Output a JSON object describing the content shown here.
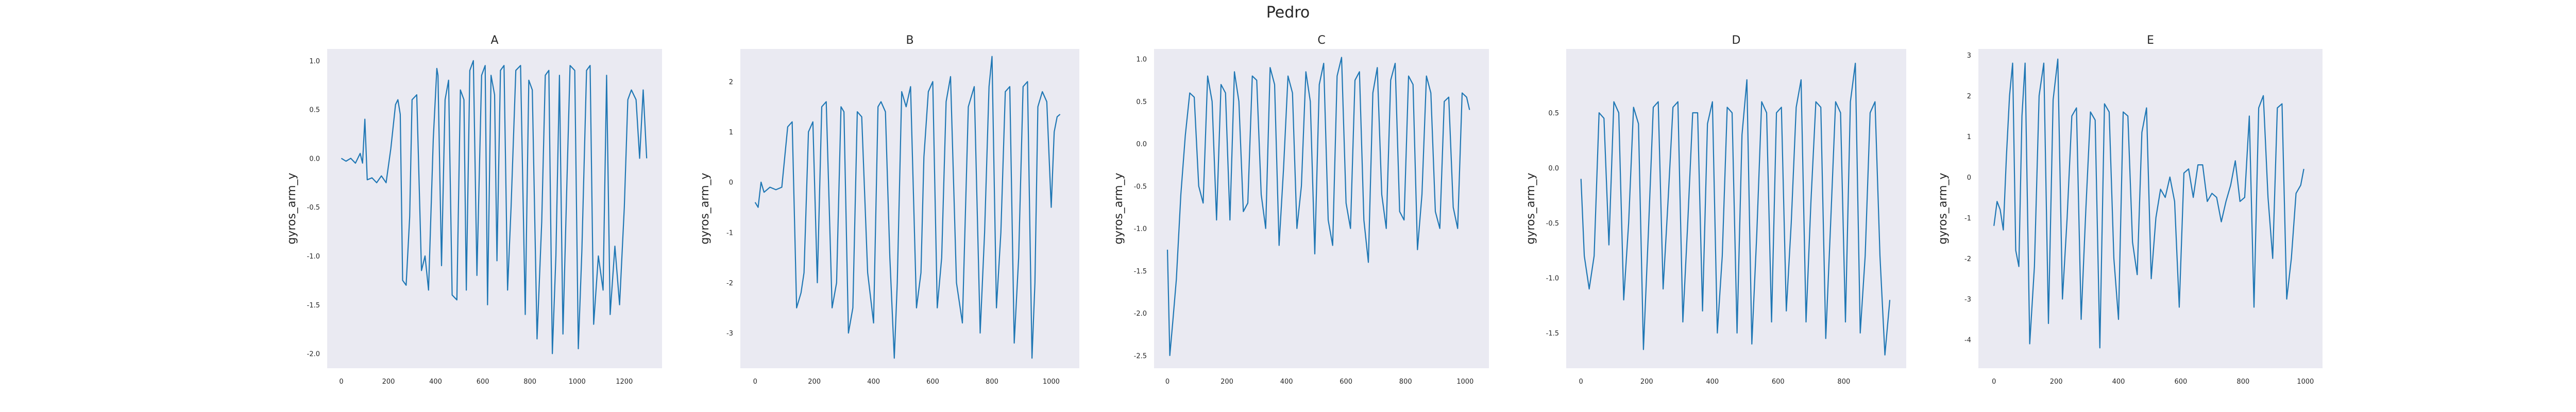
{
  "figure": {
    "title": "Pedro",
    "line_color": "#1f77b4",
    "background": "#eaeaf2"
  },
  "chart_data": [
    {
      "type": "line",
      "title": "A",
      "xlabel": "",
      "ylabel": "gyros_arm_y",
      "xlim": [
        -60,
        1360
      ],
      "ylim": [
        -2.15,
        1.12
      ],
      "xticks": [
        0,
        200,
        400,
        600,
        800,
        1000,
        1200
      ],
      "yticks": [
        -2.0,
        -1.5,
        -1.0,
        -0.5,
        0.0,
        0.5,
        1.0
      ],
      "ytick_labels": [
        "-2.0",
        "-1.5",
        "-1.0",
        "-0.5",
        "0.0",
        "0.5",
        "1.0"
      ],
      "grid": false,
      "x": [
        0,
        20,
        40,
        60,
        80,
        90,
        100,
        110,
        130,
        150,
        170,
        190,
        210,
        230,
        240,
        250,
        260,
        275,
        290,
        300,
        320,
        340,
        355,
        370,
        390,
        405,
        410,
        425,
        440,
        455,
        470,
        490,
        505,
        520,
        530,
        545,
        560,
        575,
        595,
        610,
        620,
        635,
        650,
        660,
        675,
        690,
        705,
        720,
        740,
        760,
        780,
        795,
        810,
        830,
        850,
        865,
        880,
        895,
        910,
        925,
        940,
        955,
        970,
        990,
        1005,
        1020,
        1040,
        1055,
        1070,
        1090,
        1110,
        1125,
        1140,
        1160,
        1180,
        1200,
        1215,
        1230,
        1250,
        1265,
        1280,
        1295
      ],
      "y": [
        0.0,
        -0.03,
        0.0,
        -0.05,
        0.05,
        -0.05,
        0.4,
        -0.22,
        -0.2,
        -0.25,
        -0.18,
        -0.25,
        0.1,
        0.55,
        0.6,
        0.45,
        -1.25,
        -1.3,
        -0.6,
        0.6,
        0.65,
        -1.15,
        -1.0,
        -1.35,
        0.2,
        0.92,
        0.85,
        -1.1,
        0.6,
        0.8,
        -1.4,
        -1.45,
        0.7,
        0.6,
        -1.35,
        0.9,
        1.0,
        -1.2,
        0.85,
        0.95,
        -1.5,
        0.85,
        0.65,
        -1.05,
        0.9,
        0.95,
        -1.35,
        -0.5,
        0.9,
        0.95,
        -1.6,
        0.8,
        0.7,
        -1.85,
        -0.65,
        0.85,
        0.9,
        -2.0,
        -1.0,
        0.85,
        -1.8,
        -0.4,
        0.95,
        0.9,
        -1.95,
        -0.95,
        0.9,
        0.95,
        -1.7,
        -1.0,
        -1.35,
        0.85,
        -1.6,
        -0.9,
        -1.5,
        -0.5,
        0.6,
        0.7,
        0.6,
        0.0,
        0.7,
        0.0
      ]
    },
    {
      "type": "line",
      "title": "B",
      "xlabel": "",
      "ylabel": "gyros_arm_y",
      "xlim": [
        -50,
        1095
      ],
      "ylim": [
        -3.7,
        2.65
      ],
      "xticks": [
        0,
        200,
        400,
        600,
        800,
        1000
      ],
      "yticks": [
        -3,
        -2,
        -1,
        0,
        1,
        2
      ],
      "ytick_labels": [
        "-3",
        "-2",
        "-1",
        "0",
        "1",
        "2"
      ],
      "grid": false,
      "x": [
        0,
        10,
        20,
        30,
        50,
        70,
        90,
        110,
        125,
        140,
        155,
        165,
        180,
        195,
        210,
        225,
        240,
        260,
        275,
        290,
        300,
        315,
        330,
        345,
        360,
        380,
        400,
        415,
        425,
        440,
        455,
        470,
        480,
        495,
        510,
        525,
        545,
        560,
        570,
        585,
        600,
        615,
        630,
        645,
        660,
        680,
        700,
        720,
        740,
        760,
        775,
        790,
        800,
        815,
        830,
        845,
        860,
        875,
        890,
        905,
        920,
        935,
        945,
        955,
        970,
        985,
        1000,
        1010,
        1020,
        1030
      ],
      "y": [
        -0.4,
        -0.5,
        0.0,
        -0.2,
        -0.1,
        -0.15,
        -0.1,
        1.1,
        1.2,
        -2.5,
        -2.2,
        -1.8,
        1.0,
        1.2,
        -2.0,
        1.5,
        1.6,
        -2.5,
        -2.0,
        1.5,
        1.4,
        -3.0,
        -2.5,
        1.4,
        1.3,
        -1.8,
        -2.8,
        1.5,
        1.6,
        1.4,
        -1.5,
        -3.5,
        -2.0,
        1.8,
        1.5,
        1.9,
        -2.5,
        -1.8,
        0.5,
        1.8,
        2.0,
        -2.5,
        -1.5,
        1.6,
        2.1,
        -2.0,
        -2.8,
        1.5,
        1.9,
        -3.0,
        -1.0,
        1.9,
        2.5,
        -2.5,
        -1.0,
        1.8,
        1.9,
        -3.2,
        -1.5,
        1.9,
        2.0,
        -3.5,
        -2.0,
        1.5,
        1.8,
        1.6,
        -0.5,
        1.0,
        1.3,
        1.35
      ]
    },
    {
      "type": "line",
      "title": "C",
      "xlabel": "",
      "ylabel": "gyros_arm_y",
      "xlim": [
        -45,
        1080
      ],
      "ylim": [
        -2.65,
        1.12
      ],
      "xticks": [
        0,
        200,
        400,
        600,
        800,
        1000
      ],
      "yticks": [
        -2.5,
        -2.0,
        -1.5,
        -1.0,
        -0.5,
        0.0,
        0.5,
        1.0
      ],
      "ytick_labels": [
        "-2.5",
        "-2.0",
        "-1.5",
        "-1.0",
        "-0.5",
        "0.0",
        "0.5",
        "1.0"
      ],
      "grid": false,
      "x": [
        0,
        8,
        18,
        30,
        45,
        60,
        75,
        90,
        105,
        120,
        135,
        150,
        165,
        180,
        195,
        210,
        225,
        240,
        255,
        270,
        285,
        300,
        315,
        330,
        345,
        360,
        375,
        390,
        405,
        420,
        435,
        450,
        465,
        480,
        495,
        510,
        525,
        540,
        555,
        570,
        585,
        600,
        615,
        630,
        645,
        660,
        675,
        690,
        705,
        720,
        735,
        750,
        765,
        780,
        795,
        810,
        825,
        840,
        855,
        870,
        885,
        900,
        915,
        930,
        945,
        960,
        975,
        990,
        1005,
        1015
      ],
      "y": [
        -1.25,
        -2.5,
        -2.1,
        -1.6,
        -0.6,
        0.1,
        0.6,
        0.55,
        -0.5,
        -0.7,
        0.8,
        0.5,
        -0.9,
        0.7,
        0.6,
        -0.9,
        0.85,
        0.5,
        -0.8,
        -0.7,
        0.8,
        0.75,
        -0.6,
        -1.0,
        0.9,
        0.7,
        -1.2,
        -0.3,
        0.8,
        0.6,
        -1.0,
        -0.5,
        0.85,
        0.5,
        -1.3,
        0.7,
        0.95,
        -0.9,
        -1.2,
        0.8,
        1.02,
        -0.7,
        -1.0,
        0.75,
        0.85,
        -0.9,
        -1.4,
        0.6,
        0.9,
        -0.6,
        -1.0,
        0.75,
        0.95,
        -0.8,
        -0.9,
        0.8,
        0.7,
        -1.25,
        -0.6,
        0.8,
        0.6,
        -0.8,
        -1.0,
        0.5,
        0.55,
        -0.75,
        -1.0,
        0.6,
        0.55,
        0.4
      ]
    },
    {
      "type": "line",
      "title": "D",
      "xlabel": "",
      "ylabel": "gyros_arm_y",
      "xlim": [
        -45,
        990
      ],
      "ylim": [
        -1.82,
        1.08
      ],
      "xticks": [
        0,
        200,
        400,
        600,
        800
      ],
      "yticks": [
        -1.5,
        -1.0,
        -0.5,
        0.0,
        0.5
      ],
      "ytick_labels": [
        "-1.5",
        "-1.0",
        "-0.5",
        "0.0",
        "0.5"
      ],
      "grid": false,
      "x": [
        0,
        10,
        25,
        40,
        55,
        70,
        85,
        100,
        115,
        130,
        145,
        160,
        175,
        190,
        205,
        220,
        235,
        250,
        265,
        280,
        295,
        310,
        325,
        340,
        355,
        370,
        385,
        400,
        415,
        430,
        445,
        460,
        475,
        490,
        505,
        520,
        535,
        550,
        565,
        580,
        595,
        610,
        625,
        640,
        655,
        670,
        685,
        700,
        715,
        730,
        745,
        760,
        775,
        790,
        805,
        820,
        835,
        850,
        865,
        880,
        895,
        910,
        925,
        940
      ],
      "y": [
        -0.1,
        -0.8,
        -1.1,
        -0.8,
        0.5,
        0.45,
        -0.7,
        0.6,
        0.5,
        -1.2,
        -0.5,
        0.55,
        0.4,
        -1.65,
        -0.6,
        0.55,
        0.6,
        -1.1,
        -0.3,
        0.55,
        0.6,
        -1.4,
        -0.5,
        0.5,
        0.5,
        -1.3,
        0.4,
        0.6,
        -1.5,
        -0.8,
        0.55,
        0.5,
        -1.5,
        0.3,
        0.8,
        -1.6,
        -0.6,
        0.6,
        0.5,
        -1.4,
        0.5,
        0.55,
        -1.3,
        -0.5,
        0.55,
        0.8,
        -1.4,
        -0.3,
        0.6,
        0.55,
        -1.55,
        -0.5,
        0.6,
        0.5,
        -1.4,
        0.6,
        0.95,
        -1.5,
        -0.8,
        0.5,
        0.6,
        -0.8,
        -1.7,
        -1.2
      ]
    },
    {
      "type": "line",
      "title": "E",
      "xlabel": "",
      "ylabel": "gyros_arm_y",
      "xlim": [
        -50,
        1055
      ],
      "ylim": [
        -4.7,
        3.15
      ],
      "xticks": [
        0,
        200,
        400,
        600,
        800,
        1000
      ],
      "yticks": [
        -4,
        -3,
        -2,
        -1,
        0,
        1,
        2,
        3
      ],
      "ytick_labels": [
        "-4",
        "-3",
        "-2",
        "-1",
        "0",
        "1",
        "2",
        "3"
      ],
      "grid": false,
      "x": [
        0,
        10,
        20,
        30,
        40,
        50,
        60,
        70,
        80,
        90,
        100,
        115,
        130,
        145,
        160,
        175,
        190,
        205,
        220,
        235,
        250,
        265,
        280,
        295,
        310,
        325,
        340,
        355,
        370,
        385,
        400,
        415,
        430,
        445,
        460,
        475,
        490,
        505,
        520,
        535,
        550,
        565,
        580,
        595,
        610,
        625,
        640,
        655,
        670,
        685,
        700,
        715,
        730,
        745,
        760,
        775,
        790,
        805,
        820,
        835,
        850,
        865,
        880,
        895,
        910,
        925,
        940,
        955,
        970,
        985,
        995
      ],
      "y": [
        -1.2,
        -0.6,
        -0.8,
        -1.3,
        0.5,
        2.0,
        2.8,
        -1.8,
        -2.2,
        1.5,
        2.8,
        -4.1,
        -2.2,
        2.0,
        2.8,
        -3.6,
        1.9,
        2.9,
        -3.0,
        -1.0,
        1.5,
        1.7,
        -3.5,
        -0.8,
        1.6,
        1.4,
        -4.2,
        1.8,
        1.6,
        -2.0,
        -3.5,
        1.6,
        1.5,
        -1.6,
        -2.4,
        1.1,
        1.7,
        -2.5,
        -1.0,
        -0.3,
        -0.5,
        0.0,
        -0.6,
        -3.2,
        0.1,
        0.2,
        -0.5,
        0.3,
        0.3,
        -0.6,
        -0.4,
        -0.5,
        -1.1,
        -0.6,
        -0.2,
        0.4,
        -0.6,
        -0.5,
        1.5,
        -3.2,
        1.7,
        2.0,
        -0.5,
        -2.0,
        1.7,
        1.8,
        -3.0,
        -2.0,
        -0.4,
        -0.2,
        0.2
      ]
    }
  ]
}
